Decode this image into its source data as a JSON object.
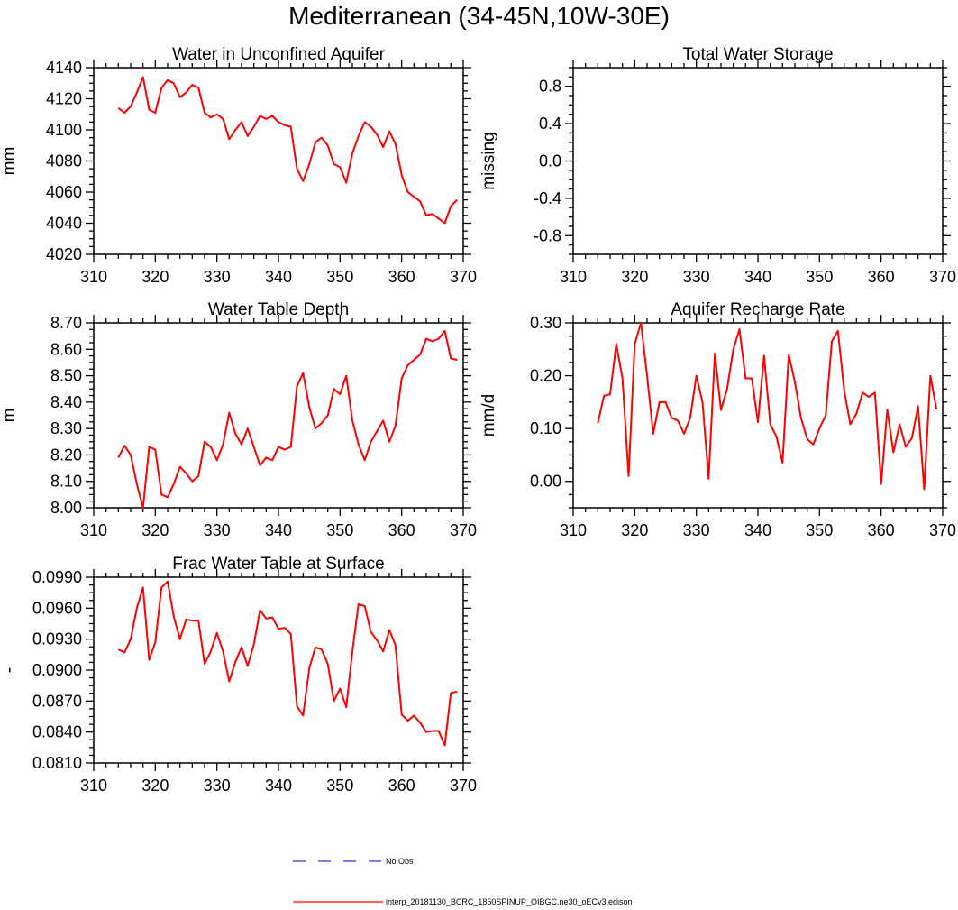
{
  "figure_title": "Mediterranean (34-45N,10W-30E)",
  "legend": {
    "obs_label": "No Obs",
    "obs_color": "#0000cc",
    "model_label": "interp_20181130_BCRC_1850SPINUP_OIBGC.ne30_oECv3.edison",
    "model_color": "#ff0000"
  },
  "chart_data": [
    {
      "type": "line",
      "title": "Water in Unconfined Aquifer",
      "ylabel": "mm",
      "xlim": [
        310,
        370
      ],
      "ylim": [
        4020,
        4140
      ],
      "xticks": [
        "310",
        "320",
        "330",
        "340",
        "350",
        "360",
        "370"
      ],
      "yticks": [
        "4020",
        "4040",
        "4060",
        "4080",
        "4100",
        "4120",
        "4140"
      ],
      "series": [
        {
          "name": "interp_20181130_BCRC_1850SPINUP_OIBGC.ne30_oECv3.edison",
          "x": [
            314,
            315,
            316,
            317,
            318,
            319,
            320,
            321,
            322,
            323,
            324,
            325,
            326,
            327,
            328,
            329,
            330,
            331,
            332,
            333,
            334,
            335,
            336,
            337,
            338,
            339,
            340,
            341,
            342,
            343,
            344,
            345,
            346,
            347,
            348,
            349,
            350,
            351,
            352,
            353,
            354,
            355,
            356,
            357,
            358,
            359,
            360,
            361,
            362,
            363,
            364,
            365,
            366,
            367,
            368,
            369
          ],
          "values": [
            4114,
            4111,
            4115,
            4124,
            4134,
            4113,
            4111,
            4127,
            4132,
            4130,
            4121,
            4124,
            4129,
            4127,
            4111,
            4108,
            4110,
            4107,
            4094,
            4100,
            4105,
            4096,
            4102,
            4109,
            4107,
            4109,
            4105,
            4103,
            4102,
            4075,
            4067,
            4078,
            4092,
            4095,
            4090,
            4078,
            4076,
            4066,
            4085,
            4096,
            4105,
            4102,
            4097,
            4089,
            4099,
            4091,
            4071,
            4060,
            4057,
            4054,
            4045,
            4046,
            4043,
            4040,
            4051,
            4055
          ]
        }
      ]
    },
    {
      "type": "line",
      "title": "Total Water Storage",
      "ylabel": "missing",
      "xlim": [
        310,
        370
      ],
      "ylim": [
        -1.0,
        1.0
      ],
      "xticks": [
        "310",
        "320",
        "330",
        "340",
        "350",
        "360",
        "370"
      ],
      "yticks": [
        "-0.8",
        "-0.4",
        "0.0",
        "0.4",
        "0.8"
      ],
      "series": []
    },
    {
      "type": "line",
      "title": "Water Table Depth",
      "ylabel": "m",
      "xlim": [
        310,
        370
      ],
      "ylim": [
        8.0,
        8.7
      ],
      "xticks": [
        "310",
        "320",
        "330",
        "340",
        "350",
        "360",
        "370"
      ],
      "yticks": [
        "8.00",
        "8.10",
        "8.20",
        "8.30",
        "8.40",
        "8.50",
        "8.60",
        "8.70"
      ],
      "series": [
        {
          "name": "interp_20181130_BCRC_1850SPINUP_OIBGC.ne30_oECv3.edison",
          "x": [
            314,
            315,
            316,
            317,
            318,
            319,
            320,
            321,
            322,
            323,
            324,
            325,
            326,
            327,
            328,
            329,
            330,
            331,
            332,
            333,
            334,
            335,
            336,
            337,
            338,
            339,
            340,
            341,
            342,
            343,
            344,
            345,
            346,
            347,
            348,
            349,
            350,
            351,
            352,
            353,
            354,
            355,
            356,
            357,
            358,
            359,
            360,
            361,
            362,
            363,
            364,
            365,
            366,
            367,
            368,
            369
          ],
          "values": [
            8.19,
            8.235,
            8.2,
            8.09,
            8.0,
            8.23,
            8.22,
            8.05,
            8.04,
            8.09,
            8.155,
            8.13,
            8.1,
            8.12,
            8.25,
            8.23,
            8.18,
            8.24,
            8.36,
            8.28,
            8.24,
            8.3,
            8.23,
            8.16,
            8.19,
            8.18,
            8.23,
            8.22,
            8.23,
            8.46,
            8.51,
            8.38,
            8.3,
            8.32,
            8.35,
            8.45,
            8.43,
            8.5,
            8.33,
            8.24,
            8.18,
            8.25,
            8.29,
            8.33,
            8.25,
            8.31,
            8.49,
            8.54,
            8.56,
            8.58,
            8.64,
            8.63,
            8.64,
            8.67,
            8.565,
            8.56
          ]
        }
      ]
    },
    {
      "type": "line",
      "title": "Aquifer Recharge Rate",
      "ylabel": "mm/d",
      "xlim": [
        310,
        370
      ],
      "ylim": [
        -0.05,
        0.3
      ],
      "xticks": [
        "310",
        "320",
        "330",
        "340",
        "350",
        "360",
        "370"
      ],
      "yticks": [
        "0.00",
        "0.10",
        "0.20",
        "0.30"
      ],
      "series": [
        {
          "name": "interp_20181130_BCRC_1850SPINUP_OIBGC.ne30_oECv3.edison",
          "x": [
            314,
            315,
            316,
            317,
            318,
            319,
            320,
            321,
            322,
            323,
            324,
            325,
            326,
            327,
            328,
            329,
            330,
            331,
            332,
            333,
            334,
            335,
            336,
            337,
            338,
            339,
            340,
            341,
            342,
            343,
            344,
            345,
            346,
            347,
            348,
            349,
            350,
            351,
            352,
            353,
            354,
            355,
            356,
            357,
            358,
            359,
            360,
            361,
            362,
            363,
            364,
            365,
            366,
            367,
            368,
            369
          ],
          "values": [
            0.11,
            0.162,
            0.165,
            0.26,
            0.195,
            0.01,
            0.26,
            0.3,
            0.2,
            0.09,
            0.15,
            0.15,
            0.12,
            0.115,
            0.09,
            0.12,
            0.2,
            0.15,
            0.005,
            0.242,
            0.135,
            0.175,
            0.25,
            0.288,
            0.195,
            0.195,
            0.112,
            0.238,
            0.108,
            0.085,
            0.035,
            0.24,
            0.188,
            0.12,
            0.08,
            0.07,
            0.1,
            0.125,
            0.265,
            0.285,
            0.172,
            0.108,
            0.128,
            0.168,
            0.16,
            0.168,
            -0.005,
            0.136,
            0.055,
            0.108,
            0.065,
            0.082,
            0.142,
            -0.015,
            0.2,
            0.136
          ]
        }
      ]
    },
    {
      "type": "line",
      "title": "Frac Water Table at Surface",
      "ylabel": "-",
      "xlim": [
        310,
        370
      ],
      "ylim": [
        0.081,
        0.099
      ],
      "xticks": [
        "310",
        "320",
        "330",
        "340",
        "350",
        "360",
        "370"
      ],
      "yticks": [
        "0.0810",
        "0.0840",
        "0.0870",
        "0.0900",
        "0.0930",
        "0.0960",
        "0.0990"
      ],
      "series": [
        {
          "name": "interp_20181130_BCRC_1850SPINUP_OIBGC.ne30_oECv3.edison",
          "x": [
            314,
            315,
            316,
            317,
            318,
            319,
            320,
            321,
            322,
            323,
            324,
            325,
            326,
            327,
            328,
            329,
            330,
            331,
            332,
            333,
            334,
            335,
            336,
            337,
            338,
            339,
            340,
            341,
            342,
            343,
            344,
            345,
            346,
            347,
            348,
            349,
            350,
            351,
            352,
            353,
            354,
            355,
            356,
            357,
            358,
            359,
            360,
            361,
            362,
            363,
            364,
            365,
            366,
            367,
            368,
            369
          ],
          "values": [
            0.092,
            0.0917,
            0.093,
            0.096,
            0.098,
            0.091,
            0.0927,
            0.098,
            0.0986,
            0.0952,
            0.093,
            0.0949,
            0.0948,
            0.0948,
            0.0906,
            0.0918,
            0.0936,
            0.0918,
            0.0889,
            0.0908,
            0.0922,
            0.0904,
            0.0925,
            0.0958,
            0.095,
            0.0951,
            0.094,
            0.0941,
            0.0935,
            0.0865,
            0.0856,
            0.0902,
            0.0922,
            0.092,
            0.0906,
            0.087,
            0.0882,
            0.0864,
            0.0918,
            0.0964,
            0.0962,
            0.0937,
            0.0929,
            0.0918,
            0.0939,
            0.0924,
            0.0857,
            0.0851,
            0.0856,
            0.0849,
            0.084,
            0.0841,
            0.0841,
            0.0827,
            0.0878,
            0.0879
          ]
        }
      ]
    }
  ]
}
